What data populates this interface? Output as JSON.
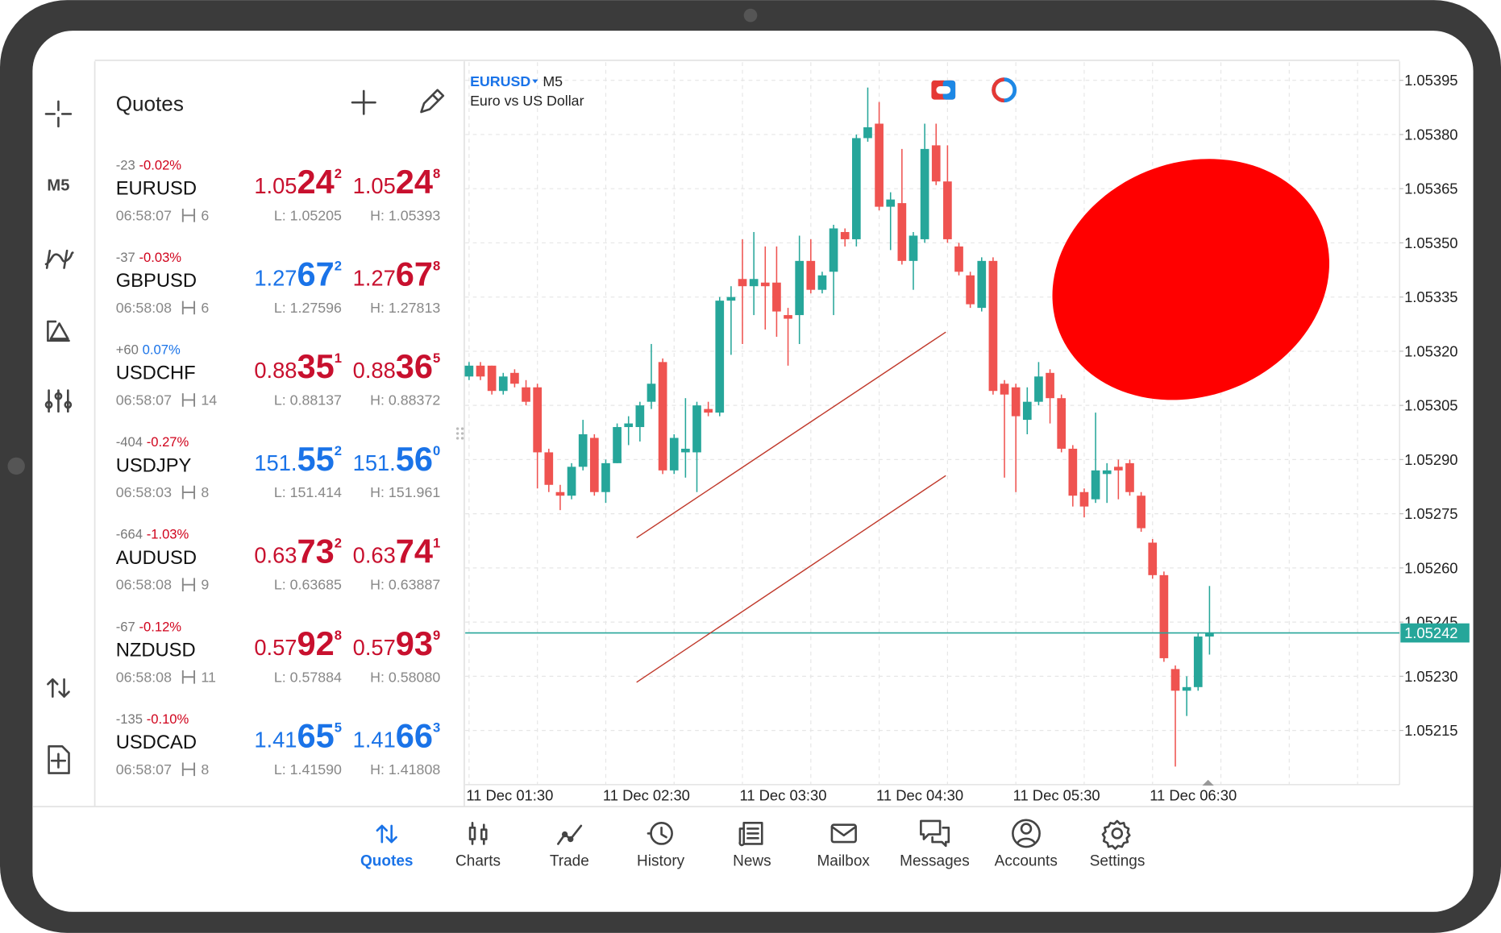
{
  "sidebar": {
    "timeframe": "M5"
  },
  "quotes": {
    "title": "Quotes",
    "rows": [
      {
        "change": "-23",
        "pct": "-0.02%",
        "pct_color": "#d0021b",
        "symbol": "EURUSD",
        "time": "06:58:07",
        "spread": "6",
        "bid": {
          "pre": "1.05",
          "big": "24",
          "sup": "2",
          "color": "#c8102e"
        },
        "ask": {
          "pre": "1.05",
          "big": "24",
          "sup": "8",
          "color": "#c8102e"
        },
        "low": "L: 1.05205",
        "high": "H: 1.05393"
      },
      {
        "change": "-37",
        "pct": "-0.03%",
        "pct_color": "#d0021b",
        "symbol": "GBPUSD",
        "time": "06:58:08",
        "spread": "6",
        "bid": {
          "pre": "1.27",
          "big": "67",
          "sup": "2",
          "color": "#1a73e8"
        },
        "ask": {
          "pre": "1.27",
          "big": "67",
          "sup": "8",
          "color": "#c8102e"
        },
        "low": "L: 1.27596",
        "high": "H: 1.27813"
      },
      {
        "change": "+60",
        "pct": "0.07%",
        "pct_color": "#1a73e8",
        "symbol": "USDCHF",
        "time": "06:58:07",
        "spread": "14",
        "bid": {
          "pre": "0.88",
          "big": "35",
          "sup": "1",
          "color": "#c8102e"
        },
        "ask": {
          "pre": "0.88",
          "big": "36",
          "sup": "5",
          "color": "#c8102e"
        },
        "low": "L: 0.88137",
        "high": "H: 0.88372"
      },
      {
        "change": "-404",
        "pct": "-0.27%",
        "pct_color": "#d0021b",
        "symbol": "USDJPY",
        "time": "06:58:03",
        "spread": "8",
        "bid": {
          "pre": "151.",
          "big": "55",
          "sup": "2",
          "color": "#1a73e8"
        },
        "ask": {
          "pre": "151.",
          "big": "56",
          "sup": "0",
          "color": "#1a73e8"
        },
        "low": "L: 151.414",
        "high": "H: 151.961"
      },
      {
        "change": "-664",
        "pct": "-1.03%",
        "pct_color": "#d0021b",
        "symbol": "AUDUSD",
        "time": "06:58:08",
        "spread": "9",
        "bid": {
          "pre": "0.63",
          "big": "73",
          "sup": "2",
          "color": "#c8102e"
        },
        "ask": {
          "pre": "0.63",
          "big": "74",
          "sup": "1",
          "color": "#c8102e"
        },
        "low": "L: 0.63685",
        "high": "H: 0.63887"
      },
      {
        "change": "-67",
        "pct": "-0.12%",
        "pct_color": "#d0021b",
        "symbol": "NZDUSD",
        "time": "06:58:08",
        "spread": "11",
        "bid": {
          "pre": "0.57",
          "big": "92",
          "sup": "8",
          "color": "#c8102e"
        },
        "ask": {
          "pre": "0.57",
          "big": "93",
          "sup": "9",
          "color": "#c8102e"
        },
        "low": "L: 0.57884",
        "high": "H: 0.58080"
      },
      {
        "change": "-135",
        "pct": "-0.10%",
        "pct_color": "#d0021b",
        "symbol": "USDCAD",
        "time": "06:58:07",
        "spread": "8",
        "bid": {
          "pre": "1.41",
          "big": "65",
          "sup": "5",
          "color": "#1a73e8"
        },
        "ask": {
          "pre": "1.41",
          "big": "66",
          "sup": "3",
          "color": "#1a73e8"
        },
        "low": "L: 1.41590",
        "high": "H: 1.41808"
      }
    ]
  },
  "chart": {
    "type": "candlestick",
    "symbol": "EURUSD",
    "timeframe": "M5",
    "description": "Euro vs US Dollar",
    "up_color": "#26a69a",
    "down_color": "#ef5350",
    "grid": true,
    "ylim": [
      1.052,
      1.054
    ],
    "yticks": [
      1.05395,
      {
        "value": 1.0538,
        "label": "1.05380"
      },
      1.05365,
      {
        "value": 1.0535,
        "label": "1.05350"
      },
      1.05335,
      {
        "value": 1.0532,
        "label": "1.05320"
      },
      1.05305,
      {
        "value": 1.0529,
        "label": "1.05290"
      },
      1.05275,
      {
        "value": 1.0526,
        "label": "1.05260"
      },
      1.05245,
      {
        "value": 1.0523,
        "label": "1.05230"
      },
      1.05215
    ],
    "x_labels": [
      "11 Dec 01:30",
      "11 Dec 02:30",
      "11 Dec 03:30",
      "11 Dec 04:30",
      "11 Dec 05:30",
      "11 Dec 06:30"
    ],
    "current_price": 1.05242,
    "current_color": "#26a69a",
    "candles": [
      [
        1.05313,
        1.05317,
        1.05312,
        1.05316
      ],
      [
        1.05316,
        1.05317,
        1.05312,
        1.05313
      ],
      [
        1.05316,
        1.05316,
        1.05308,
        1.05309
      ],
      [
        1.05309,
        1.05314,
        1.05308,
        1.05313
      ],
      [
        1.05314,
        1.05315,
        1.0531,
        1.05311
      ],
      [
        1.0531,
        1.05312,
        1.05305,
        1.05306
      ],
      [
        1.0531,
        1.05311,
        1.05282,
        1.05292
      ],
      [
        1.05292,
        1.05293,
        1.05281,
        1.05283
      ],
      [
        1.05281,
        1.05283,
        1.05276,
        1.0528
      ],
      [
        1.0528,
        1.05289,
        1.05279,
        1.05288
      ],
      [
        1.05288,
        1.05301,
        1.05287,
        1.05297
      ],
      [
        1.05296,
        1.05297,
        1.0528,
        1.05281
      ],
      [
        1.05281,
        1.0529,
        1.05278,
        1.05289
      ],
      [
        1.05289,
        1.053,
        1.05289,
        1.05299
      ],
      [
        1.05299,
        1.05302,
        1.05294,
        1.053
      ],
      [
        1.05299,
        1.05306,
        1.05295,
        1.05305
      ],
      [
        1.05306,
        1.05322,
        1.05304,
        1.05311
      ],
      [
        1.05317,
        1.05318,
        1.05286,
        1.05287
      ],
      [
        1.05287,
        1.05297,
        1.05286,
        1.05296
      ],
      [
        1.05292,
        1.05307,
        1.05285,
        1.05293
      ],
      [
        1.05292,
        1.05306,
        1.05281,
        1.05305
      ],
      [
        1.05304,
        1.05306,
        1.05302,
        1.05303
      ],
      [
        1.05303,
        1.05335,
        1.05302,
        1.05334
      ],
      [
        1.05334,
        1.05338,
        1.05319,
        1.05335
      ],
      [
        1.0534,
        1.05351,
        1.05322,
        1.05338
      ],
      [
        1.05338,
        1.05353,
        1.0533,
        1.0534
      ],
      [
        1.05339,
        1.05349,
        1.05326,
        1.05338
      ],
      [
        1.05339,
        1.05349,
        1.05324,
        1.05331
      ],
      [
        1.0533,
        1.05332,
        1.05316,
        1.05329
      ],
      [
        1.0533,
        1.05352,
        1.05322,
        1.05345
      ],
      [
        1.05345,
        1.05351,
        1.05336,
        1.05337
      ],
      [
        1.05337,
        1.05342,
        1.05336,
        1.05341
      ],
      [
        1.05342,
        1.05355,
        1.0533,
        1.05354
      ],
      [
        1.05353,
        1.05354,
        1.05349,
        1.05351
      ],
      [
        1.05351,
        1.0538,
        1.05349,
        1.05379
      ],
      [
        1.05379,
        1.05393,
        1.05378,
        1.05382
      ],
      [
        1.05383,
        1.05389,
        1.05359,
        1.0536
      ],
      [
        1.0536,
        1.05364,
        1.05348,
        1.05362
      ],
      [
        1.05361,
        1.05376,
        1.05344,
        1.05345
      ],
      [
        1.05345,
        1.05353,
        1.05337,
        1.05352
      ],
      [
        1.05351,
        1.05383,
        1.0535,
        1.05376
      ],
      [
        1.05377,
        1.05383,
        1.05366,
        1.05367
      ],
      [
        1.05367,
        1.05377,
        1.0535,
        1.05351
      ],
      [
        1.05349,
        1.0535,
        1.05341,
        1.05342
      ],
      [
        1.05341,
        1.05342,
        1.05332,
        1.05333
      ],
      [
        1.05332,
        1.05346,
        1.05331,
        1.05345
      ],
      [
        1.05345,
        1.05346,
        1.05308,
        1.05309
      ],
      [
        1.05311,
        1.05312,
        1.05285,
        1.05308
      ],
      [
        1.0531,
        1.05311,
        1.05281,
        1.05302
      ],
      [
        1.05301,
        1.0531,
        1.05297,
        1.05306
      ],
      [
        1.05306,
        1.05317,
        1.05305,
        1.05313
      ],
      [
        1.05314,
        1.05315,
        1.053,
        1.05307
      ],
      [
        1.05307,
        1.05308,
        1.05292,
        1.05293
      ],
      [
        1.05293,
        1.05294,
        1.05277,
        1.0528
      ],
      [
        1.05281,
        1.05282,
        1.05274,
        1.05277
      ],
      [
        1.05279,
        1.05303,
        1.05278,
        1.05287
      ],
      [
        1.05286,
        1.05289,
        1.05278,
        1.05287
      ],
      [
        1.05288,
        1.0529,
        1.05279,
        1.05287
      ],
      [
        1.05289,
        1.0529,
        1.0528,
        1.05281
      ],
      [
        1.0528,
        1.05281,
        1.0527,
        1.05271
      ],
      [
        1.05267,
        1.05268,
        1.05257,
        1.05258
      ],
      [
        1.05258,
        1.05259,
        1.05234,
        1.05235
      ],
      [
        1.05232,
        1.05233,
        1.05205,
        1.05226
      ],
      [
        1.05226,
        1.0523,
        1.05219,
        1.05227
      ],
      [
        1.05227,
        1.05242,
        1.05226,
        1.05241
      ],
      [
        1.05241,
        1.05255,
        1.05236,
        1.05242
      ]
    ]
  },
  "nav": {
    "active_index": 0,
    "active_color": "#1a73e8",
    "items": [
      "Quotes",
      "Charts",
      "Trade",
      "History",
      "News",
      "Mailbox",
      "Messages",
      "Accounts",
      "Settings"
    ]
  }
}
